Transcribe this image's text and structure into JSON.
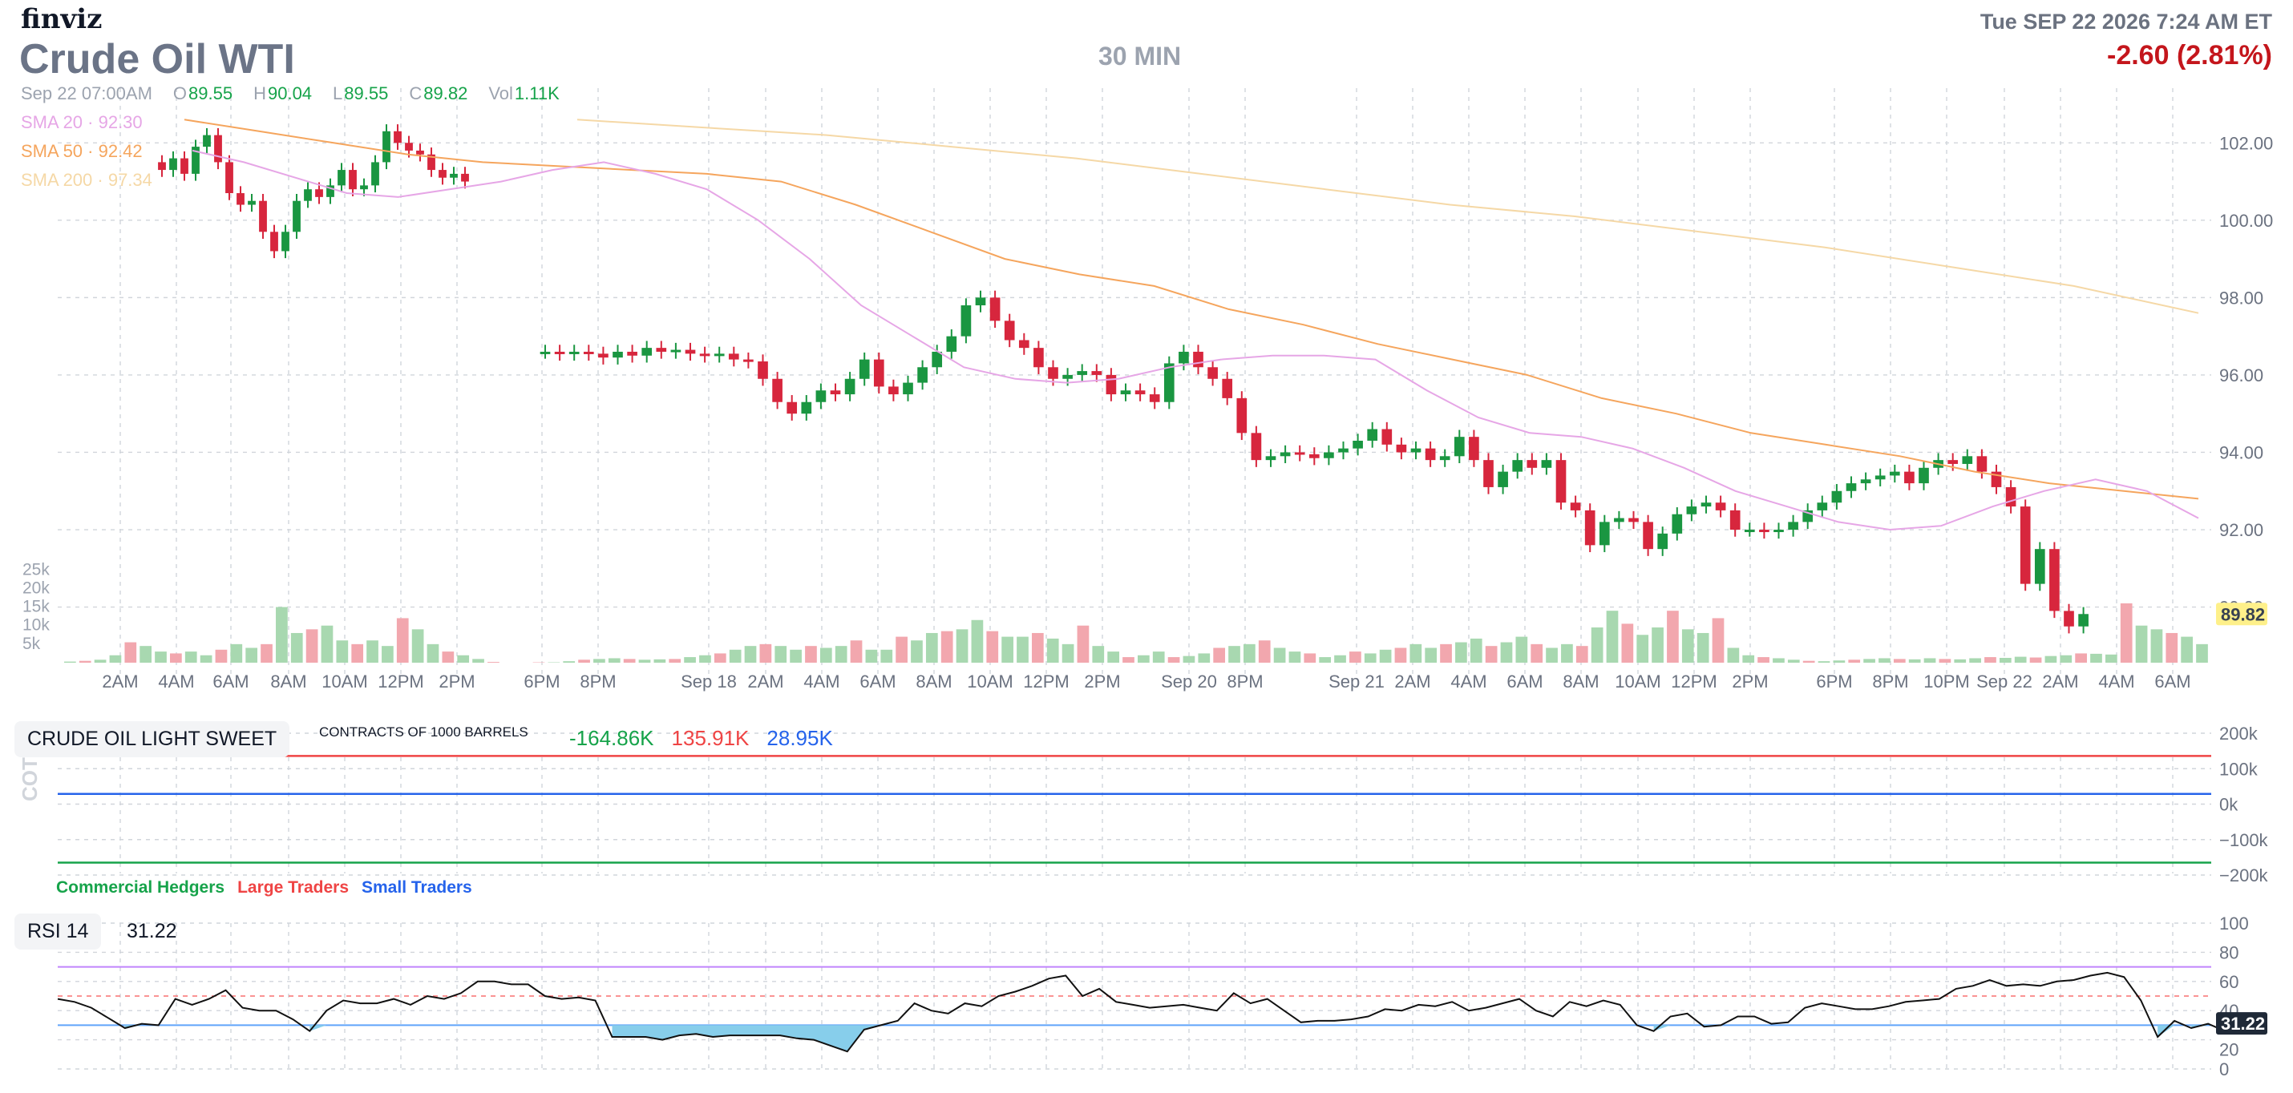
{
  "header": {
    "logo": "finviz",
    "title": "Crude Oil WTI",
    "timeframe": "30 MIN",
    "datetime": "Tue SEP 22 2026 7:24 AM ET",
    "change": "-2.60 (2.81%)"
  },
  "ohlc": {
    "date": "Sep 22 07:00AM",
    "open_key": "O",
    "open": "89.55",
    "high_key": "H",
    "high": "90.04",
    "low_key": "L",
    "low": "89.55",
    "close_key": "C",
    "close": "89.82",
    "vol_key": "Vol",
    "vol": "1.11K"
  },
  "sma_labels": {
    "sma20": "SMA 20 · 92.30",
    "sma50": "SMA 50 · 92.42",
    "sma200": "SMA 200 · 97.34"
  },
  "cot": {
    "label": "CRUDE OIL LIGHT SWEET",
    "units": "CONTRACTS OF 1000 BARRELS",
    "commercial_value": "-164.86K",
    "large_value": "135.91K",
    "small_value": "28.95K",
    "legend": {
      "commercial": "Commercial Hedgers",
      "large": "Large Traders",
      "small": "Small Traders"
    },
    "side_label": "COT"
  },
  "rsi": {
    "label": "RSI 14",
    "value": "31.22"
  },
  "colors": {
    "up": "#1a9641",
    "down": "#d7263d",
    "vol_up": "#a8d8b0",
    "vol_down": "#f2a7ae",
    "sma20": "#e6a6e6",
    "sma50": "#f5a55d",
    "sma200": "#f5d8a6",
    "rsi_line": "#111111",
    "rsi_fill": "#87ceeb",
    "commercial": "#16a34a",
    "large": "#ef4444",
    "small": "#2563eb",
    "last_price_bg": "#fef08a"
  },
  "chart_data": [
    {
      "type": "candlestick",
      "title": "Crude Oil WTI",
      "ylim": [
        88.5,
        103.0
      ],
      "y_ticks": [
        "102.00",
        "100.00",
        "98.00",
        "96.00",
        "94.00",
        "92.00",
        "90.00"
      ],
      "last_price": "89.82",
      "x_ticks": [
        "2AM",
        "4AM",
        "6AM",
        "8AM",
        "10AM",
        "12PM",
        "2PM",
        "6PM",
        "8PM",
        "Sep 18",
        "2AM",
        "4AM",
        "6AM",
        "8AM",
        "10AM",
        "12PM",
        "2PM",
        "Sep 20",
        "8PM",
        "Sep 21",
        "2AM",
        "4AM",
        "6AM",
        "8AM",
        "10AM",
        "12PM",
        "2PM",
        "6PM",
        "8PM",
        "10PM",
        "Sep 22",
        "2AM",
        "4AM",
        "6AM"
      ],
      "grid": true,
      "segments": [
        {
          "start_close": 101.5,
          "closes": [
            101.3,
            101.6,
            101.2,
            101.9,
            102.2,
            101.5,
            100.7,
            100.4,
            100.5,
            99.7,
            99.2,
            99.7,
            100.5,
            100.8,
            100.6,
            100.9,
            101.3,
            100.8,
            100.9,
            101.5,
            102.3,
            102.0,
            101.8,
            101.7,
            101.3,
            101.1,
            101.2,
            101.0
          ]
        },
        {
          "start_close": 96.6,
          "closes": [
            96.6,
            96.55,
            96.6,
            96.55,
            96.45,
            96.6,
            96.5,
            96.7,
            96.6,
            96.65,
            96.55,
            96.5,
            96.55,
            96.4,
            96.35,
            95.9,
            95.3,
            95.0,
            95.3,
            95.6,
            95.5,
            95.9,
            96.4,
            95.7,
            95.5,
            95.8,
            96.2,
            96.6,
            97.0,
            97.8,
            98.0,
            97.4,
            96.9,
            96.7,
            96.2,
            95.9,
            96.0,
            96.1,
            96.0,
            95.5,
            95.6,
            95.5,
            95.3,
            96.3,
            96.6,
            96.2,
            95.9,
            95.4,
            94.5,
            93.8,
            93.9,
            94.0,
            93.95,
            93.85,
            94.0,
            94.1,
            94.3,
            94.6,
            94.2,
            94.0,
            94.1,
            93.8,
            93.9,
            94.4,
            93.8,
            93.1,
            93.5,
            93.8,
            93.6,
            93.8,
            92.7,
            92.5,
            91.6,
            92.2,
            92.3,
            92.2,
            91.5,
            91.9,
            92.4,
            92.6,
            92.7,
            92.5,
            92.0,
            92.0,
            91.95,
            92.0,
            92.2,
            92.5,
            92.7,
            93.0,
            93.2,
            93.3,
            93.4,
            93.5,
            93.2,
            93.6,
            93.8,
            93.7,
            93.9,
            93.5,
            93.1,
            92.6,
            90.6,
            91.5,
            89.9,
            89.5,
            89.82
          ]
        }
      ],
      "series": [
        {
          "name": "SMA 20",
          "values": [
            101.8,
            101.5,
            101.1,
            100.7,
            100.6,
            100.8,
            101.0,
            101.3,
            101.5,
            101.2,
            100.8,
            100.0,
            99.0,
            97.8,
            97.0,
            96.2,
            95.9,
            95.8,
            95.9,
            96.2,
            96.4,
            96.5,
            96.5,
            96.4,
            95.6,
            94.9,
            94.5,
            94.4,
            94.1,
            93.6,
            93.0,
            92.6,
            92.2,
            92.0,
            92.1,
            92.6,
            93.0,
            93.3,
            93.0,
            92.3
          ]
        },
        {
          "name": "SMA 50",
          "values": [
            102.6,
            102.3,
            102.0,
            101.7,
            101.5,
            101.4,
            101.3,
            101.2,
            101.0,
            100.4,
            99.7,
            99.0,
            98.6,
            98.3,
            97.7,
            97.3,
            96.8,
            96.4,
            96.0,
            95.4,
            95.0,
            94.5,
            94.2,
            93.9,
            93.5,
            93.2,
            93.0,
            92.8
          ]
        },
        {
          "name": "SMA 200",
          "values": [
            102.6,
            102.4,
            102.2,
            101.9,
            101.6,
            101.2,
            100.8,
            100.4,
            100.1,
            99.7,
            99.3,
            98.8,
            98.3,
            97.6
          ]
        }
      ]
    },
    {
      "type": "bar",
      "title": "Volume",
      "y_ticks": [
        "25k",
        "20k",
        "15k",
        "10k",
        "5k"
      ],
      "ylim": [
        0,
        27000
      ],
      "values": [
        300,
        500,
        800,
        2000,
        5500,
        4500,
        3000,
        2500,
        3000,
        2000,
        3500,
        5000,
        4000,
        5000,
        15000,
        8000,
        9000,
        10000,
        6000,
        5000,
        6000,
        4500,
        12000,
        9000,
        5000,
        3000,
        2000,
        1000,
        200,
        0,
        0,
        100,
        100,
        400,
        800,
        1000,
        1200,
        1000,
        800,
        900,
        1000,
        1500,
        2000,
        2500,
        3500,
        4500,
        5000,
        4500,
        3500,
        4500,
        4000,
        4500,
        6000,
        3500,
        3500,
        7000,
        6000,
        8000,
        8500,
        9000,
        11500,
        8500,
        7000,
        7000,
        8000,
        6500,
        5000,
        10000,
        4500,
        3000,
        1500,
        2000,
        3000,
        1500,
        1800,
        2500,
        4000,
        4500,
        5000,
        6000,
        4000,
        3000,
        2500,
        1500,
        2000,
        3000,
        2500,
        3500,
        4000,
        5000,
        4000,
        5000,
        5500,
        6500,
        4500,
        5500,
        7000,
        5000,
        4000,
        5000,
        4500,
        9500,
        14000,
        10500,
        7500,
        9500,
        14000,
        9000,
        8000,
        12000,
        4000,
        2000,
        1500,
        1200,
        800,
        500,
        400,
        600,
        800,
        1000,
        1200,
        1000,
        900,
        1200,
        1000,
        900,
        1200,
        1500,
        1300,
        1600,
        1400,
        1800,
        2000,
        2500,
        2400,
        2200,
        16000,
        10000,
        9000,
        8000,
        7000,
        5000
      ]
    },
    {
      "type": "line",
      "title": "COT",
      "y_ticks": [
        "200k",
        "100k",
        "0k",
        "−100k",
        "−200k"
      ],
      "ylim": [
        -200000,
        200000
      ],
      "series": [
        {
          "name": "Large Traders",
          "values": [
            135910
          ]
        },
        {
          "name": "Small Traders",
          "values": [
            28950
          ]
        },
        {
          "name": "Commercial Hedgers",
          "values": [
            -164860
          ]
        }
      ]
    },
    {
      "type": "line",
      "title": "RSI 14",
      "y_ticks": [
        "100",
        "80",
        "60",
        "40",
        "20",
        "0"
      ],
      "ylim": [
        0,
        100
      ],
      "levels": [
        70,
        50,
        30
      ],
      "series": [
        {
          "name": "RSI 14",
          "values": [
            48,
            46,
            42,
            35,
            28,
            31,
            30,
            48,
            44,
            48,
            54,
            42,
            40,
            40,
            34,
            26,
            40,
            47,
            45,
            45,
            48,
            44,
            50,
            48,
            52,
            60,
            60,
            58,
            58,
            50,
            48,
            49,
            47,
            22,
            22,
            22,
            20,
            23,
            24,
            22,
            23,
            23,
            23,
            23,
            21,
            20,
            16,
            12,
            27,
            30,
            33,
            45,
            40,
            38,
            45,
            43,
            50,
            53,
            57,
            62,
            64,
            50,
            55,
            46,
            44,
            42,
            43,
            44,
            42,
            40,
            52,
            45,
            48,
            40,
            32,
            33,
            33,
            34,
            36,
            41,
            40,
            44,
            43,
            46,
            40,
            42,
            45,
            48,
            40,
            36,
            46,
            43,
            47,
            44,
            30,
            26,
            36,
            38,
            29,
            30,
            36,
            36,
            31,
            32,
            42,
            45,
            43,
            41,
            41,
            43,
            46,
            47,
            48,
            55,
            57,
            61,
            57,
            58,
            57,
            60,
            61,
            64,
            66,
            63,
            47,
            22,
            33,
            28,
            31,
            26,
            31.22
          ]
        }
      ]
    }
  ]
}
